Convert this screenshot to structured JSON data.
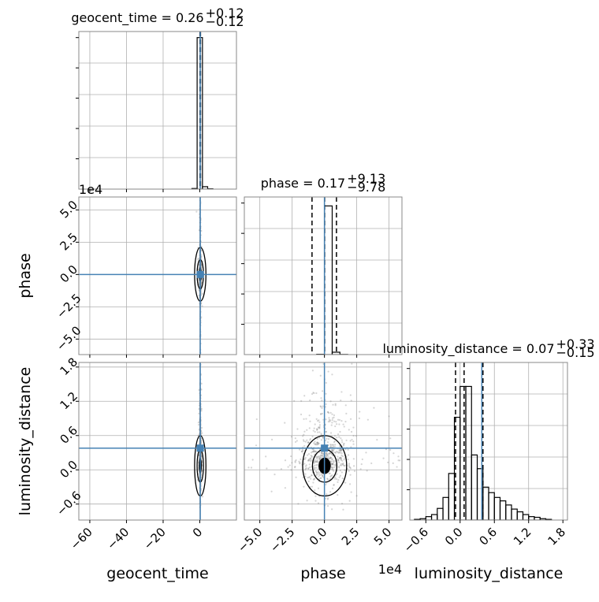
{
  "chart_data": {
    "type": "corner",
    "parameters": [
      "geocent_time",
      "phase",
      "luminosity_distance"
    ],
    "axis_labels": {
      "x": [
        "geocent_time",
        "phase",
        "luminosity_distance"
      ],
      "y": [
        "",
        "phase",
        "luminosity_distance"
      ]
    },
    "titles": [
      {
        "param": "geocent_time",
        "text": "geocent_time = 0.26",
        "upper": "+0.12",
        "lower": "−0.12"
      },
      {
        "param": "phase",
        "text": "phase = 0.17",
        "upper": "+9.13",
        "lower": "−9.78"
      },
      {
        "param": "luminosity_distance",
        "text": "luminosity_distance = 0.07",
        "upper": "+0.33",
        "lower": "−0.15"
      }
    ],
    "offset_text": {
      "phase_y": "1e4",
      "phase_x": "1e4"
    },
    "ranges": {
      "geocent_time": [
        -66,
        20
      ],
      "phase": [
        -62000,
        60000
      ],
      "luminosity_distance": [
        -0.88,
        1.88
      ]
    },
    "ticks": {
      "geocent_time": {
        "values": [
          -60,
          -40,
          -20,
          0
        ],
        "labels": [
          "−60",
          "−40",
          "−20",
          "0"
        ]
      },
      "phase": {
        "values": [
          -50000,
          -25000,
          0,
          25000,
          50000
        ],
        "labels": [
          "−5.0",
          "−2.5",
          "0.0",
          "2.5",
          "5.0"
        ]
      },
      "luminosity_distance": {
        "values": [
          -0.6,
          0.0,
          0.6,
          1.2,
          1.8
        ],
        "labels": [
          "−0.6",
          "0.0",
          "0.6",
          "1.2",
          "1.8"
        ]
      }
    },
    "truths": {
      "geocent_time": 0.26,
      "phase": 0.17,
      "luminosity_distance": 0.38
    },
    "quantiles": {
      "geocent_time": [
        0.14,
        0.26,
        0.38
      ],
      "phase": [
        -9610,
        170,
        9300
      ],
      "luminosity_distance": [
        -0.08,
        0.07,
        0.4
      ]
    },
    "histograms": {
      "geocent_time": {
        "edges": [
          -4.3,
          -1.45,
          1.45,
          4.3,
          7.15
        ],
        "counts": [
          0.02,
          5.0,
          0.08,
          0.01
        ],
        "ymax": 5.2
      },
      "phase": {
        "edges": [
          -6000,
          0,
          6000,
          12000,
          18000
        ],
        "counts": [
          0.01,
          5.0,
          0.08,
          0.005
        ],
        "ymax": 5.3
      },
      "luminosity_distance": {
        "edges": [
          -0.8,
          -0.7,
          -0.6,
          -0.5,
          -0.4,
          -0.3,
          -0.2,
          -0.1,
          0.0,
          0.1,
          0.2,
          0.3,
          0.4,
          0.5,
          0.6,
          0.7,
          0.8,
          0.9,
          1.0,
          1.1,
          1.2,
          1.3,
          1.4,
          1.5,
          1.6
        ],
        "counts": [
          0.01,
          0.02,
          0.05,
          0.08,
          0.17,
          0.33,
          0.68,
          1.5,
          1.95,
          1.95,
          0.95,
          0.75,
          0.48,
          0.4,
          0.33,
          0.28,
          0.22,
          0.16,
          0.12,
          0.08,
          0.05,
          0.04,
          0.02,
          0.01
        ],
        "ymax": 2.3
      }
    },
    "gridlines": {
      "geocent_time": [
        -60,
        -40,
        -20,
        0
      ],
      "phase": [
        -50000,
        -25000,
        0,
        25000,
        50000
      ],
      "luminosity_distance": [
        -0.6,
        0.0,
        0.6,
        1.2,
        1.8
      ]
    },
    "grid": true,
    "colors": {
      "truth": "#4682b4",
      "hist": "#000000",
      "points": "#888888",
      "grid": "#b0b0b0",
      "spine": "#888888"
    }
  }
}
